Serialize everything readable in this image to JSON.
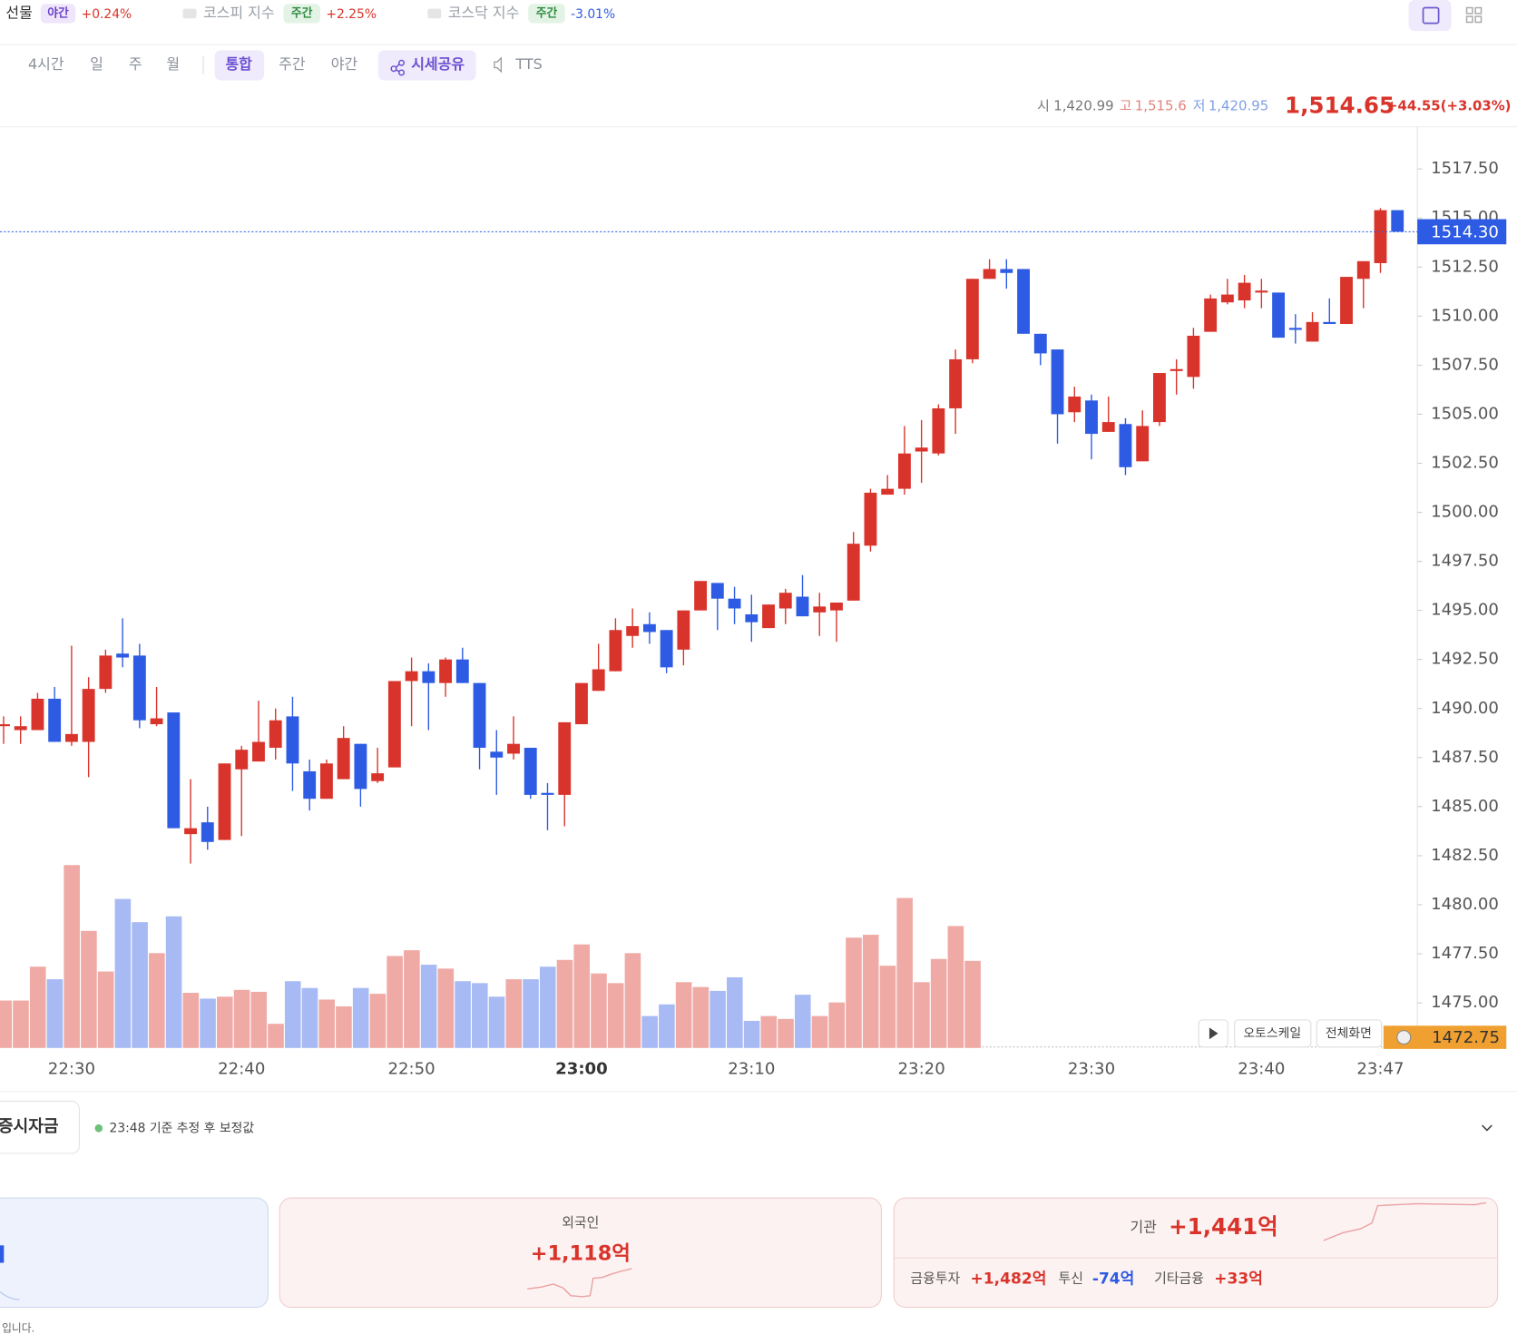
{
  "header": {
    "items": [
      {
        "name": "선물",
        "session": "야간",
        "change": "+0.24%"
      },
      {
        "name": "코스피 지수",
        "session": "주간",
        "change": "+2.25%"
      },
      {
        "name": "코스닥 지수",
        "session": "주간",
        "change": "-3.01%"
      }
    ]
  },
  "tabs": [
    "4시간",
    "일",
    "주",
    "월",
    "통합",
    "주간",
    "야간",
    "시세공유",
    "TTS"
  ],
  "quote": {
    "open_label": "시",
    "open": "1,420.99",
    "high_label": "고",
    "high": "1,515.6",
    "low_label": "저",
    "low": "1,420.95",
    "price": "1,514.65",
    "change": "+44.55(+3.03%)"
  },
  "controls": [
    "오토스케일",
    "전체화면"
  ],
  "flows": {
    "title": "증시자금",
    "note": "23:48 기준 추정 후 보정값",
    "foreign": {
      "label": "외국인",
      "value": "+1,118억"
    },
    "institution": {
      "label": "기관",
      "value": "+1,441억",
      "parts": [
        {
          "label": "금융투자",
          "value": "+1,482억"
        },
        {
          "label": "투신",
          "value": "-74억"
        },
        {
          "label": "기타금융",
          "value": "+33억"
        }
      ]
    },
    "footer": "입니다."
  },
  "chart_data": {
    "type": "candlestick",
    "categories": [
      null,
      null,
      null,
      null,
      "22:30",
      null,
      null,
      null,
      null,
      null,
      null,
      null,
      null,
      null,
      "22:40",
      null,
      null,
      null,
      null,
      null,
      null,
      null,
      null,
      null,
      "22:50",
      null,
      null,
      null,
      null,
      null,
      null,
      null,
      null,
      null,
      "23:00",
      null,
      null,
      null,
      null,
      null,
      null,
      null,
      null,
      null,
      "23:10",
      null,
      null,
      null,
      null,
      null,
      null,
      null,
      null,
      null,
      "23:20",
      null,
      null,
      null,
      null,
      null,
      null,
      null,
      null,
      null,
      "23:30",
      null,
      null,
      null,
      null,
      null,
      null,
      null,
      null,
      null,
      "23:40",
      null,
      null,
      null,
      null,
      null,
      null,
      "23:47",
      null
    ],
    "open": [
      1489.1,
      1488.9,
      1488.9,
      1490.5,
      1488.3,
      1488.3,
      1491.0,
      1492.8,
      1492.7,
      1489.2,
      1489.8,
      1483.6,
      1484.2,
      1483.3,
      1486.9,
      1487.3,
      1488.0,
      1489.6,
      1486.8,
      1485.4,
      1486.4,
      1488.2,
      1486.3,
      1487.0,
      1491.4,
      1491.9,
      1491.3,
      1492.5,
      1491.3,
      1487.8,
      1487.7,
      1488.0,
      1485.7,
      1485.6,
      1489.2,
      1490.9,
      1491.9,
      1493.7,
      1494.3,
      1494.0,
      1493.0,
      1495.0,
      1496.4,
      1495.6,
      1494.8,
      1494.1,
      1495.1,
      1495.7,
      1494.9,
      1495.0,
      1495.5,
      1498.3,
      1500.9,
      1501.2,
      1503.1,
      1503.0,
      1505.3,
      1507.8,
      1511.9,
      1512.4,
      1512.4,
      1509.1,
      1508.3,
      1505.1,
      1505.7,
      1504.1,
      1504.5,
      1502.6,
      1504.6,
      1507.2,
      1506.9,
      1509.2,
      1510.7,
      1510.8,
      1511.2,
      1511.2,
      1509.4,
      1508.7,
      1509.7,
      1509.6,
      1511.9,
      1512.7,
      1515.4
    ],
    "high": [
      1489.6,
      1489.6,
      1490.8,
      1491.1,
      1493.2,
      1491.6,
      1493.0,
      1494.6,
      1493.3,
      1491.1,
      1489.8,
      1486.4,
      1485.0,
      1487.2,
      1488.1,
      1490.4,
      1490.0,
      1490.6,
      1487.4,
      1487.4,
      1489.1,
      1488.2,
      1488.0,
      1491.4,
      1492.6,
      1492.3,
      1492.6,
      1493.1,
      1491.3,
      1488.9,
      1489.6,
      1488.0,
      1486.2,
      1489.3,
      1491.3,
      1493.3,
      1494.6,
      1495.1,
      1494.9,
      1494.0,
      1495.0,
      1496.5,
      1496.4,
      1496.2,
      1495.8,
      1495.3,
      1496.1,
      1496.8,
      1495.9,
      1495.4,
      1499.0,
      1501.2,
      1501.9,
      1504.4,
      1504.7,
      1505.5,
      1508.3,
      1511.9,
      1512.9,
      1512.9,
      1512.4,
      1509.1,
      1508.3,
      1506.4,
      1506.0,
      1505.9,
      1504.8,
      1505.2,
      1507.1,
      1507.8,
      1509.4,
      1511.1,
      1511.9,
      1512.1,
      1511.9,
      1511.2,
      1510.1,
      1510.2,
      1510.9,
      1512.0,
      1512.8,
      1515.5,
      1515.4
    ],
    "low": [
      1488.2,
      1488.2,
      1488.9,
      1488.3,
      1488.1,
      1486.5,
      1490.8,
      1492.1,
      1489.0,
      1489.1,
      1483.9,
      1482.1,
      1482.8,
      1483.3,
      1483.5,
      1487.3,
      1487.4,
      1485.8,
      1484.8,
      1485.4,
      1486.4,
      1485.0,
      1486.2,
      1487.0,
      1489.1,
      1488.9,
      1490.6,
      1491.3,
      1486.9,
      1485.6,
      1487.4,
      1485.4,
      1483.8,
      1484.0,
      1489.2,
      1490.9,
      1491.9,
      1493.1,
      1493.3,
      1491.8,
      1492.2,
      1495.0,
      1494.0,
      1494.3,
      1493.4,
      1494.1,
      1494.3,
      1494.7,
      1493.7,
      1493.4,
      1495.5,
      1498.0,
      1500.9,
      1500.9,
      1501.5,
      1502.9,
      1504.0,
      1507.6,
      1511.9,
      1511.4,
      1509.1,
      1507.5,
      1503.5,
      1504.6,
      1502.7,
      1504.1,
      1501.9,
      1502.6,
      1504.4,
      1506.0,
      1506.3,
      1509.2,
      1510.6,
      1510.4,
      1510.4,
      1508.9,
      1508.6,
      1508.7,
      1509.6,
      1509.6,
      1510.4,
      1512.2,
      1514.3
    ],
    "close": [
      1489.2,
      1489.1,
      1490.5,
      1488.3,
      1488.7,
      1491.0,
      1492.7,
      1492.6,
      1489.4,
      1489.5,
      1483.9,
      1483.9,
      1483.2,
      1487.2,
      1487.9,
      1488.3,
      1489.4,
      1487.2,
      1485.4,
      1487.2,
      1488.5,
      1485.9,
      1486.7,
      1491.4,
      1491.9,
      1491.3,
      1492.5,
      1491.3,
      1488.0,
      1487.5,
      1488.2,
      1485.6,
      1485.6,
      1489.3,
      1491.3,
      1492.0,
      1494.0,
      1494.2,
      1493.9,
      1492.1,
      1495.0,
      1496.5,
      1495.6,
      1495.1,
      1494.4,
      1495.3,
      1495.9,
      1494.7,
      1495.2,
      1495.4,
      1498.4,
      1501.0,
      1501.2,
      1503.0,
      1503.3,
      1505.3,
      1507.8,
      1511.9,
      1512.4,
      1512.2,
      1509.1,
      1508.1,
      1505.0,
      1505.9,
      1504.0,
      1504.6,
      1502.3,
      1504.4,
      1507.1,
      1507.3,
      1509.0,
      1510.9,
      1511.1,
      1511.7,
      1511.3,
      1508.9,
      1509.3,
      1509.7,
      1509.6,
      1512.0,
      1512.8,
      1515.4,
      1514.3
    ],
    "volume": [
      49,
      49,
      84,
      71,
      189,
      121,
      79,
      154,
      130,
      98,
      136,
      57,
      51,
      53,
      60,
      58,
      25,
      69,
      62,
      50,
      43,
      62,
      56,
      95,
      101,
      86,
      82,
      69,
      67,
      53,
      71,
      71,
      84,
      91,
      107,
      77,
      67,
      98,
      33,
      45,
      68,
      63,
      59,
      73,
      28,
      33,
      30,
      55,
      33,
      47,
      114,
      117,
      85,
      155,
      68,
      92,
      126,
      90,
      null,
      null,
      null,
      null,
      null,
      null,
      null,
      null,
      null,
      null,
      null,
      null,
      null,
      null,
      null,
      null,
      null,
      null,
      null,
      null,
      null,
      null,
      null,
      null,
      null
    ],
    "up_color": "#d9342b",
    "down_color": "#2d5be3",
    "ylim": [
      1472.7,
      1519.7
    ],
    "yticks": [
      {
        "value": 1475,
        "label": "1475.00"
      },
      {
        "value": 1477.5,
        "label": "1477.50"
      },
      {
        "value": 1480,
        "label": "1480.00"
      },
      {
        "value": 1482.5,
        "label": "1482.50"
      },
      {
        "value": 1485,
        "label": "1485.00"
      },
      {
        "value": 1487.5,
        "label": "1487.50"
      },
      {
        "value": 1490,
        "label": "1490.00"
      },
      {
        "value": 1492.5,
        "label": "1492.50"
      },
      {
        "value": 1495,
        "label": "1495.00"
      },
      {
        "value": 1497.5,
        "label": "1497.50"
      },
      {
        "value": 1500,
        "label": "1500.00"
      },
      {
        "value": 1502.5,
        "label": "1502.50"
      },
      {
        "value": 1505,
        "label": "1505.00"
      },
      {
        "value": 1507.5,
        "label": "1507.50"
      },
      {
        "value": 1510,
        "label": "1510.00"
      },
      {
        "value": 1512.5,
        "label": "1512.50"
      },
      {
        "value": 1515,
        "label": "1515.00"
      },
      {
        "value": 1517.5,
        "label": "1517.50"
      }
    ],
    "current_price": {
      "value": 1514.3,
      "label": "1514.30"
    },
    "low_badge": {
      "value": 1472.75,
      "label": "1472.75"
    }
  }
}
